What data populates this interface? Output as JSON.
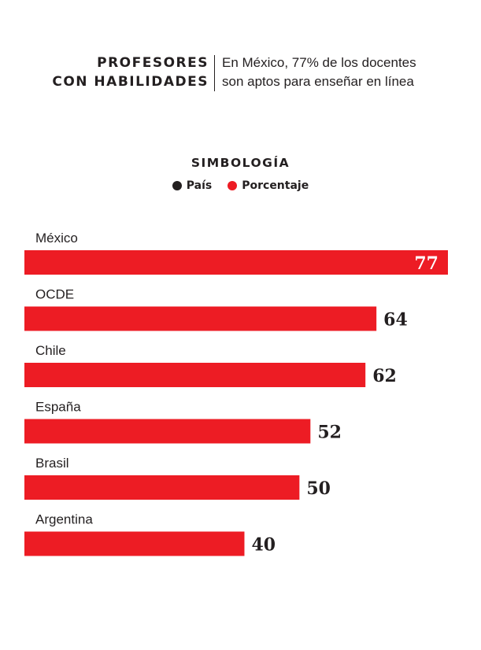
{
  "header": {
    "title_line1": "PROFESORES",
    "title_line2": "CON HABILIDADES",
    "subtitle_line1": "En México, 77% de los docentes",
    "subtitle_line2": "son aptos para enseñar en línea"
  },
  "legend": {
    "title": "SIMBOLOGÍA",
    "items": [
      {
        "label": "País",
        "color": "#231f20"
      },
      {
        "label": "Porcentaje",
        "color": "#ed1c24"
      }
    ]
  },
  "colors": {
    "bar": "#ed1c24",
    "text": "#231f20",
    "inside_label": "#ffffff"
  },
  "chart_data": {
    "type": "bar",
    "orientation": "horizontal",
    "categories": [
      "México",
      "OCDE",
      "Chile",
      "España",
      "Brasil",
      "Argentina"
    ],
    "values": [
      77,
      64,
      62,
      52,
      50,
      40
    ],
    "title": "",
    "xlabel": "",
    "ylabel": "",
    "xlim": [
      0,
      77
    ],
    "grid": false,
    "legend_placement": "top-center"
  }
}
